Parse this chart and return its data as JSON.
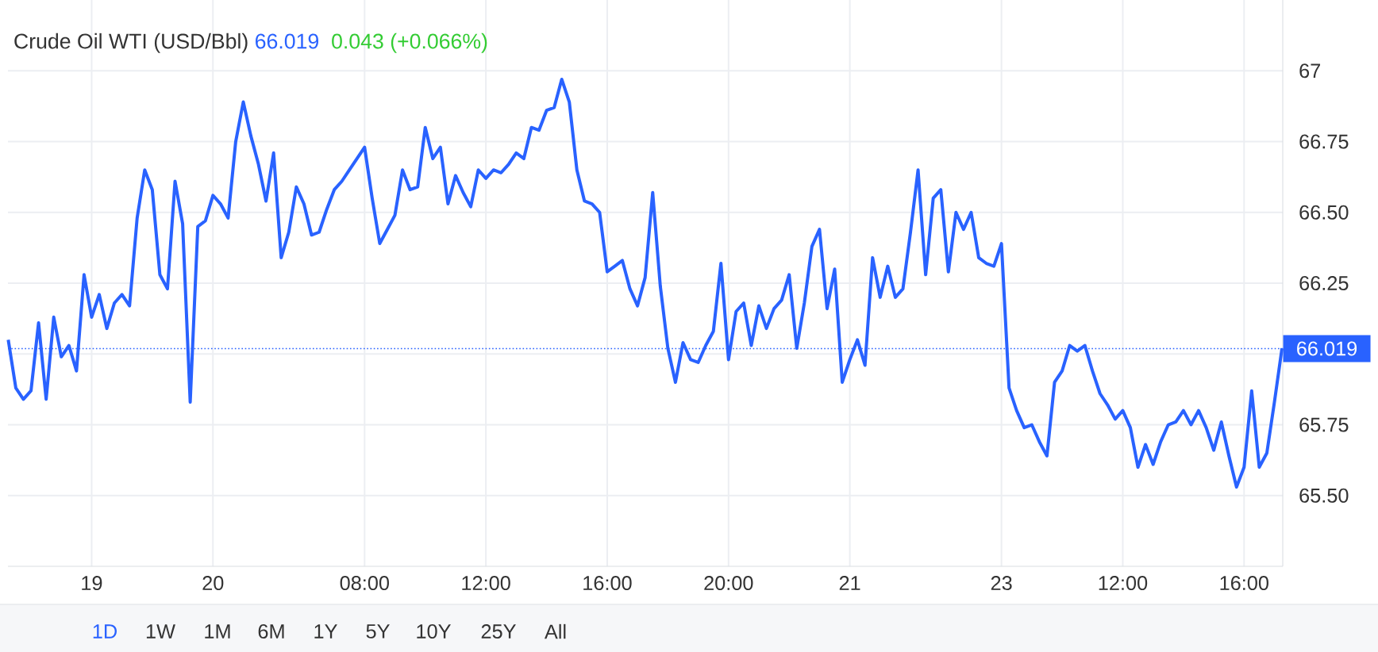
{
  "chart_data": {
    "type": "line",
    "title": "Crude Oil WTI (USD/Bbl)",
    "annotations": [
      "66.019",
      "0.043 (+0.066%)",
      "1D",
      "1W",
      "1M",
      "6M",
      "1Y",
      "5Y",
      "10Y",
      "25Y",
      "All"
    ],
    "categories": [
      null,
      null,
      null,
      null,
      null,
      null,
      null,
      null,
      null,
      null,
      null,
      "19",
      null,
      null,
      null,
      null,
      null,
      null,
      null,
      null,
      null,
      null,
      null,
      null,
      null,
      null,
      null,
      "20",
      null,
      null,
      null,
      null,
      null,
      null,
      null,
      null,
      null,
      null,
      null,
      null,
      null,
      null,
      null,
      null,
      null,
      null,
      null,
      "08:00",
      null,
      null,
      null,
      null,
      null,
      null,
      null,
      null,
      null,
      null,
      null,
      null,
      null,
      null,
      null,
      "12:00",
      null,
      null,
      null,
      null,
      null,
      null,
      null,
      null,
      null,
      null,
      null,
      null,
      null,
      null,
      null,
      "16:00",
      null,
      null,
      null,
      null,
      null,
      null,
      null,
      null,
      null,
      null,
      null,
      null,
      null,
      null,
      null,
      "20:00",
      null,
      null,
      null,
      null,
      null,
      null,
      null,
      null,
      null,
      null,
      null,
      null,
      null,
      null,
      null,
      "21",
      null,
      null,
      null,
      null,
      null,
      null,
      null,
      null,
      null,
      null,
      null,
      null,
      null,
      null,
      null,
      null,
      null,
      null,
      null,
      "23",
      null,
      null,
      null,
      null,
      null,
      null,
      null,
      null,
      null,
      null,
      null,
      null,
      null,
      null,
      null,
      "12:00",
      null,
      null,
      null,
      null,
      null,
      null,
      null,
      null,
      null,
      null,
      null,
      null,
      null,
      null,
      null,
      "16:00",
      null,
      null,
      null,
      null,
      null
    ],
    "values": [
      66.05,
      65.88,
      65.84,
      65.87,
      66.11,
      65.84,
      66.13,
      65.99,
      66.03,
      65.94,
      66.28,
      66.13,
      66.21,
      66.09,
      66.18,
      66.21,
      66.17,
      66.48,
      66.65,
      66.58,
      66.28,
      66.23,
      66.61,
      66.46,
      65.83,
      66.45,
      66.47,
      66.56,
      66.53,
      66.48,
      66.75,
      66.89,
      66.77,
      66.67,
      66.54,
      66.71,
      66.34,
      66.43,
      66.59,
      66.53,
      66.42,
      66.43,
      66.51,
      66.58,
      66.61,
      66.65,
      66.69,
      66.73,
      66.55,
      66.39,
      66.44,
      66.49,
      66.65,
      66.58,
      66.59,
      66.8,
      66.69,
      66.73,
      66.53,
      66.63,
      66.57,
      66.52,
      66.65,
      66.62,
      66.65,
      66.64,
      66.67,
      66.71,
      66.69,
      66.8,
      66.79,
      66.86,
      66.87,
      66.97,
      66.89,
      66.65,
      66.54,
      66.53,
      66.5,
      66.29,
      66.31,
      66.33,
      66.23,
      66.17,
      66.27,
      66.57,
      66.24,
      66.02,
      65.9,
      66.04,
      65.98,
      65.97,
      66.03,
      66.08,
      66.32,
      65.98,
      66.15,
      66.18,
      66.03,
      66.17,
      66.09,
      66.16,
      66.19,
      66.28,
      66.02,
      66.18,
      66.38,
      66.44,
      66.16,
      66.3,
      65.9,
      65.98,
      66.05,
      65.96,
      66.34,
      66.2,
      66.31,
      66.2,
      66.23,
      66.43,
      66.65,
      66.28,
      66.55,
      66.58,
      66.29,
      66.5,
      66.44,
      66.5,
      66.34,
      66.32,
      66.31,
      66.39,
      65.88,
      65.8,
      65.74,
      65.75,
      65.69,
      65.64,
      65.9,
      65.94,
      66.03,
      66.01,
      66.03,
      65.94,
      65.86,
      65.82,
      65.77,
      65.8,
      65.74,
      65.6,
      65.68,
      65.61,
      65.69,
      65.75,
      65.76,
      65.8,
      65.75,
      65.8,
      65.74,
      65.66,
      65.76,
      65.64,
      65.53,
      65.6,
      65.87,
      65.6,
      65.65,
      65.83,
      66.02
    ],
    "color": "#2962ff",
    "marker": "none",
    "line_style": "solid",
    "grid": true,
    "ylim": [
      65.25,
      67.25
    ],
    "yticks": [
      {
        "value": 65.5,
        "label": "65.50"
      },
      65.75,
      {
        "value": 66,
        "label": null
      },
      66.25,
      {
        "value": 66.5,
        "label": "66.50"
      },
      66.75,
      67
    ],
    "ref_lines": [
      {
        "axis": "y",
        "value": 66.019,
        "label": "66.019",
        "color": "#2962ff",
        "line_style": "dotted"
      }
    ]
  }
}
